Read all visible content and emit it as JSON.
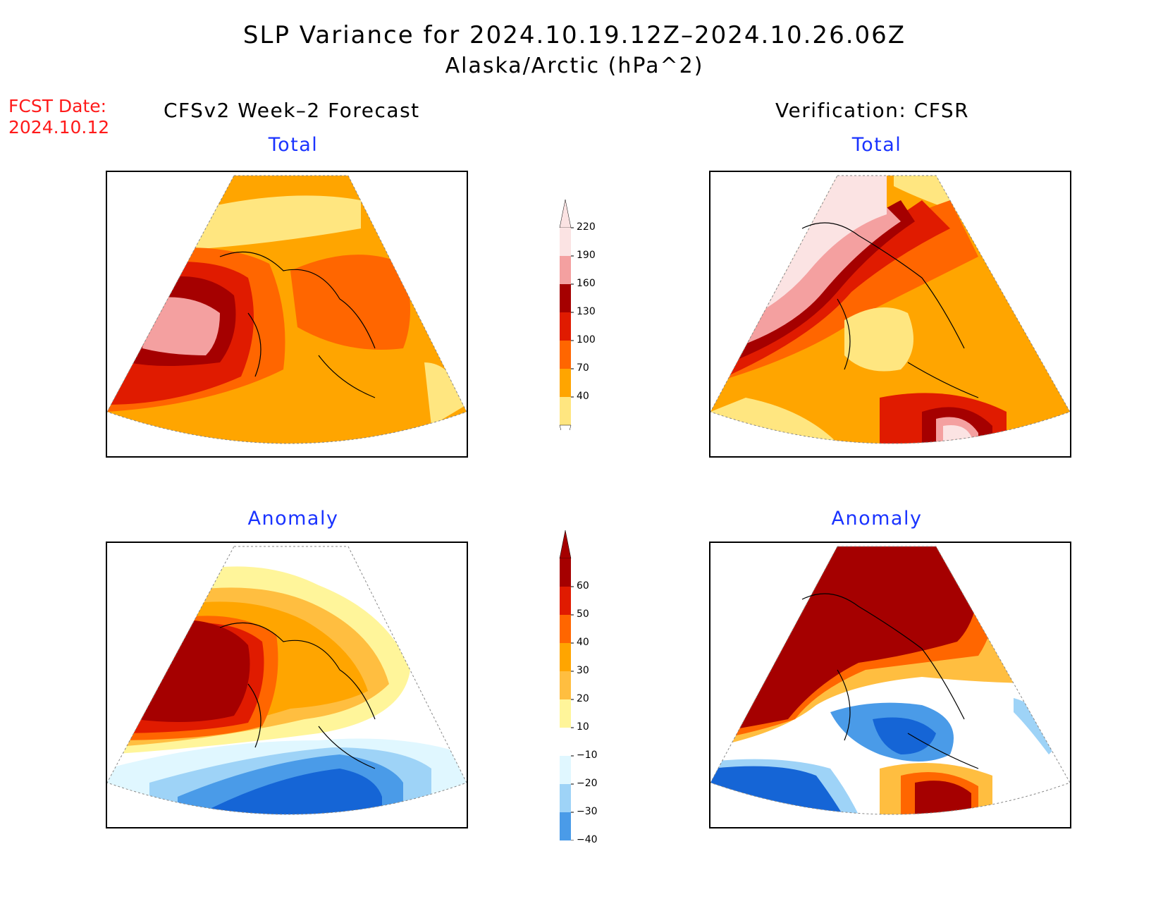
{
  "header": {
    "title_line1": "SLP Variance for 2024.10.19.12Z–2024.10.26.06Z",
    "title_line2": "Alaska/Arctic (hPa^2)",
    "fcst_date_label": "FCST Date:",
    "fcst_date_value": "2024.10.12",
    "left_column_title": "CFSv2 Week–2 Forecast",
    "right_column_title": "Verification: CFSR"
  },
  "panels": {
    "forecast_total_title": "Total",
    "verification_total_title": "Total",
    "forecast_anomaly_title": "Anomaly",
    "verification_anomaly_title": "Anomaly"
  },
  "total_colorbar": {
    "labels": [
      "220",
      "190",
      "160",
      "130",
      "100",
      "70",
      "40"
    ],
    "colors": [
      "#fbe3e3",
      "#f4a0a0",
      "#a50000",
      "#e01b00",
      "#ff6600",
      "#ffa500",
      "#ffe680"
    ]
  },
  "anomaly_colorbar": {
    "labels": [
      "60",
      "50",
      "40",
      "30",
      "20",
      "10",
      "−10",
      "−20",
      "−30",
      "−40"
    ],
    "colors": [
      "#a50000",
      "#e01b00",
      "#ff6600",
      "#ffa500",
      "#ffbe40",
      "#fff59a",
      "#ffffff",
      "#e0f7ff",
      "#9ed3f7",
      "#4a9be8",
      "#1565d6"
    ]
  }
}
